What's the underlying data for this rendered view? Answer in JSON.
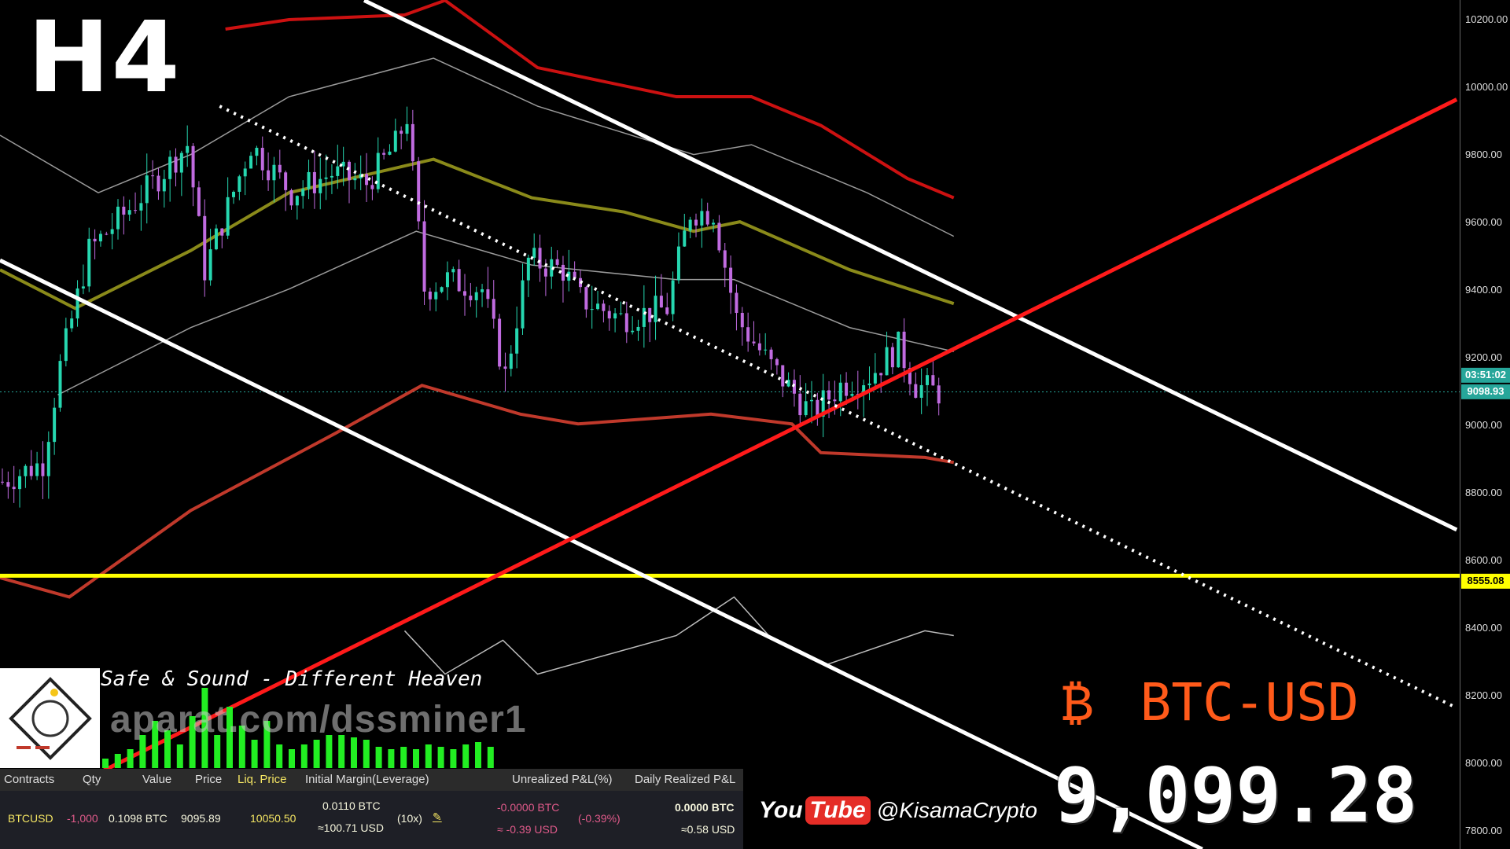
{
  "overlay": {
    "timeframe": "H4",
    "music_title": "Safe & Sound - Different Heaven",
    "watermark": "aparat.com/dssminer1",
    "youtube_label": "You",
    "youtube_label2": "Tube",
    "youtube_handle": "@KisamaCrypto",
    "pair_symbol": "₿",
    "pair": "BTC-USD",
    "big_price": "9,099.28",
    "colors": {
      "pair": "#ff5a1a",
      "youtube": "#e52d27"
    }
  },
  "position_panel": {
    "headers": [
      "Contracts",
      "Qty",
      "Value",
      "Price",
      "Liq. Price",
      "Initial Margin(Leverage)",
      "Unrealized P&L(%)",
      "Daily Realized P&L"
    ],
    "row": {
      "contract": "BTCUSD",
      "qty": "-1,000",
      "value": "0.1098 BTC",
      "price": "9095.89",
      "liq_price": "10050.50",
      "margin_btc": "0.0110 BTC",
      "margin_usd": "≈100.71 USD",
      "leverage": "(10x)",
      "edit_icon": "pencil-icon",
      "upnl_btc": "-0.0000 BTC",
      "upnl_usd": "≈ -0.39 USD",
      "upnl_pct": "(-0.39%)",
      "rpnl_btc": "0.0000 BTC",
      "rpnl_usd": "≈0.58 USD"
    }
  },
  "chart_data": {
    "type": "candlestick",
    "x_unit": "bar",
    "ylim": [
      7750,
      10270
    ],
    "y_ticks": [
      "10200.00",
      "10000.00",
      "9800.00",
      "9600.00",
      "9400.00",
      "9200.00",
      "9000.00",
      "8800.00",
      "8600.00",
      "8400.00",
      "8200.00",
      "8000.00",
      "7800.00"
    ],
    "current_price": {
      "label": "9098.93",
      "value": 9098.93,
      "countdown": "03:51:02",
      "color": "#26a69a"
    },
    "horizontal_level": {
      "label": "8555.08",
      "value": 8555.08,
      "color": "#ffff00"
    },
    "close_anchors": [
      [
        0,
        8833
      ],
      [
        7,
        8890
      ],
      [
        10,
        9175
      ],
      [
        15,
        9517
      ],
      [
        23,
        9659
      ],
      [
        32,
        9830
      ],
      [
        35,
        9460
      ],
      [
        43,
        9830
      ],
      [
        50,
        9688
      ],
      [
        57,
        9745
      ],
      [
        63,
        9716
      ],
      [
        68,
        9830
      ],
      [
        70,
        9915
      ],
      [
        73,
        9403
      ],
      [
        77,
        9431
      ],
      [
        83,
        9403
      ],
      [
        87,
        9147
      ],
      [
        91,
        9488
      ],
      [
        97,
        9460
      ],
      [
        100,
        9374
      ],
      [
        107,
        9317
      ],
      [
        115,
        9346
      ],
      [
        119,
        9631
      ],
      [
        123,
        9631
      ],
      [
        127,
        9317
      ],
      [
        133,
        9175
      ],
      [
        140,
        9033
      ],
      [
        145,
        9118
      ],
      [
        150,
        9147
      ],
      [
        155,
        9232
      ],
      [
        158,
        9118
      ],
      [
        162,
        9098
      ]
    ],
    "trendlines": [
      {
        "id": "channel-upper",
        "color": "#ffffff",
        "style": "solid",
        "points": [
          [
            63,
            10257
          ],
          [
            252,
            8691
          ]
        ]
      },
      {
        "id": "channel-lower",
        "color": "#ffffff",
        "style": "solid",
        "points": [
          [
            0,
            9488
          ],
          [
            208,
            7746
          ]
        ]
      },
      {
        "id": "support-trend",
        "color": "#ff1a1a",
        "style": "solid",
        "points": [
          [
            18,
            7979
          ],
          [
            252,
            9964
          ]
        ]
      },
      {
        "id": "dotted-trend",
        "color": "#ffffff",
        "style": "dotted",
        "points": [
          [
            38,
            9944
          ],
          [
            252,
            8164
          ]
        ]
      }
    ],
    "bands": [
      {
        "id": "outer-upper",
        "color": "#cc1111",
        "points": [
          [
            39,
            10172
          ],
          [
            50,
            10200
          ],
          [
            70,
            10214
          ],
          [
            77,
            10257
          ],
          [
            93,
            10058
          ],
          [
            117,
            9972
          ],
          [
            130,
            9972
          ],
          [
            142,
            9887
          ],
          [
            157,
            9730
          ],
          [
            165,
            9673
          ]
        ]
      },
      {
        "id": "upper",
        "color": "#9a9a9a",
        "points": [
          [
            0,
            9858
          ],
          [
            17,
            9688
          ],
          [
            33,
            9801
          ],
          [
            50,
            9972
          ],
          [
            75,
            10086
          ],
          [
            93,
            9944
          ],
          [
            120,
            9801
          ],
          [
            130,
            9830
          ],
          [
            150,
            9688
          ],
          [
            165,
            9559
          ]
        ]
      },
      {
        "id": "middle",
        "color": "#8a8a1a",
        "points": [
          [
            0,
            9460
          ],
          [
            13,
            9346
          ],
          [
            33,
            9517
          ],
          [
            50,
            9688
          ],
          [
            75,
            9787
          ],
          [
            92,
            9673
          ],
          [
            108,
            9631
          ],
          [
            120,
            9574
          ],
          [
            128,
            9602
          ],
          [
            147,
            9460
          ],
          [
            165,
            9360
          ]
        ]
      },
      {
        "id": "lower",
        "color": "#9a9a9a",
        "points": [
          [
            10,
            9090
          ],
          [
            33,
            9289
          ],
          [
            50,
            9403
          ],
          [
            72,
            9574
          ],
          [
            92,
            9474
          ],
          [
            117,
            9431
          ],
          [
            127,
            9431
          ],
          [
            147,
            9289
          ],
          [
            165,
            9218
          ]
        ]
      },
      {
        "id": "outer-lower",
        "color": "#c0392b",
        "points": [
          [
            0,
            8549
          ],
          [
            12,
            8492
          ],
          [
            33,
            8748
          ],
          [
            58,
            8976
          ],
          [
            73,
            9118
          ],
          [
            90,
            9033
          ],
          [
            100,
            9004
          ],
          [
            123,
            9033
          ],
          [
            137,
            9004
          ],
          [
            142,
            8919
          ],
          [
            160,
            8905
          ],
          [
            165,
            8890
          ]
        ]
      },
      {
        "id": "oscillator",
        "color": "#bbbbbb",
        "points": [
          [
            70,
            8392
          ],
          [
            77,
            8264
          ],
          [
            87,
            8364
          ],
          [
            93,
            8264
          ],
          [
            117,
            8378
          ],
          [
            127,
            8492
          ],
          [
            133,
            8378
          ],
          [
            143,
            8292
          ],
          [
            160,
            8392
          ],
          [
            165,
            8378
          ]
        ]
      }
    ],
    "volume": [
      4,
      6,
      8,
      14,
      20,
      16,
      10,
      22,
      34,
      14,
      26,
      18,
      12,
      20,
      10,
      8,
      10,
      12,
      14,
      14,
      13,
      12,
      9,
      8,
      9,
      8,
      10,
      9,
      8,
      10,
      11,
      9
    ]
  }
}
